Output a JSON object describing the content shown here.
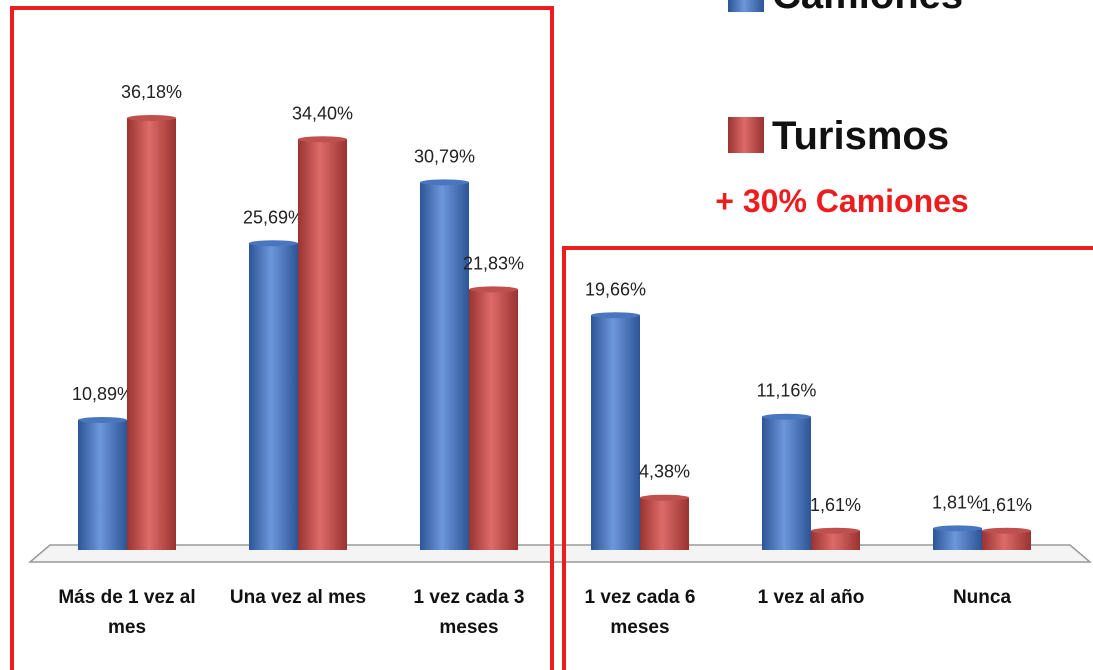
{
  "chart_data": {
    "type": "bar",
    "categories": [
      "Más de 1 vez al mes",
      "Una vez al mes",
      "1 vez cada 3 meses",
      "1 vez cada 6 meses",
      "1 vez al año",
      "Nunca"
    ],
    "series": [
      {
        "name": "Camiones",
        "color": "#4a76c0",
        "values": [
          10.89,
          25.69,
          30.79,
          19.66,
          11.16,
          1.81
        ],
        "value_labels": [
          "10,89%",
          "25,69%",
          "30,79%",
          "19,66%",
          "11,16%",
          "1,81%"
        ]
      },
      {
        "name": "Turismos",
        "color": "#c0504d",
        "values": [
          36.18,
          34.4,
          21.83,
          4.38,
          1.61,
          1.61
        ],
        "value_labels": [
          "36,18%",
          "34,40%",
          "21,83%",
          "4,38%",
          "1,61%",
          "1,61%"
        ]
      }
    ],
    "annotation": "+ 30% Camiones"
  }
}
